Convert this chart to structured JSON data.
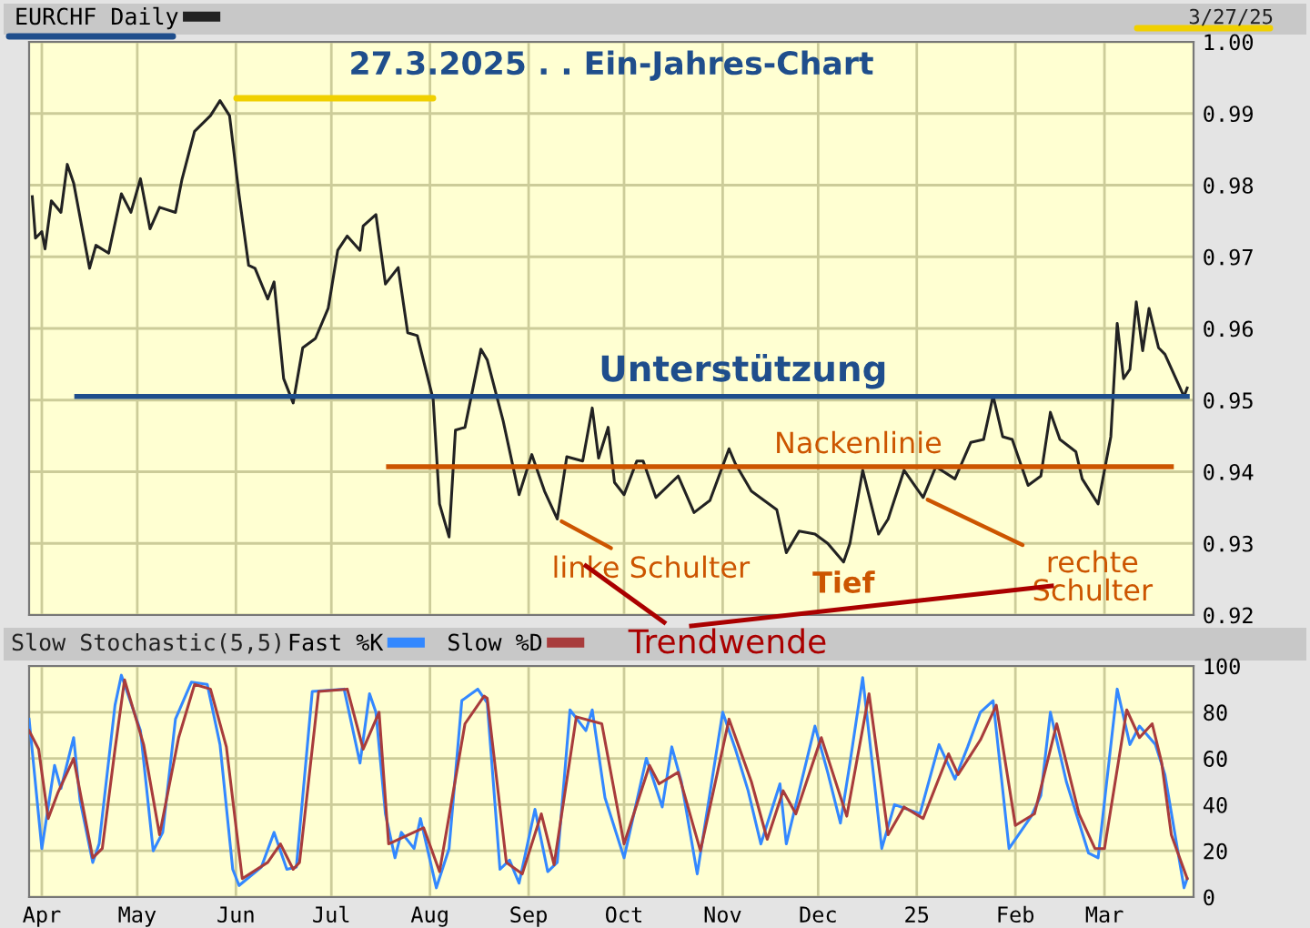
{
  "chart_data": [
    {
      "type": "line",
      "title": "27.3.2025 . . Ein-Jahres-Chart",
      "legend": "top left",
      "grid": true,
      "tick_labels": "y",
      "xlim": [
        "2024-03-28",
        "2025-03-29"
      ],
      "xticks": [
        {
          "value": "2024-04-01",
          "label": null
        },
        {
          "value": "2024-05-01",
          "label": null
        },
        {
          "value": "2024-06-01",
          "label": null
        },
        {
          "value": "2024-07-01",
          "label": null
        },
        {
          "value": "2024-08-01",
          "label": null
        },
        {
          "value": "2024-09-01",
          "label": null
        },
        {
          "value": "2024-10-01",
          "label": null
        },
        {
          "value": "2024-11-01",
          "label": null
        },
        {
          "value": "2024-12-01",
          "label": null
        },
        {
          "value": "2025-01-01",
          "label": null
        },
        {
          "value": "2025-02-01",
          "label": null
        },
        {
          "value": "2025-03-01",
          "label": null
        }
      ],
      "ylim": [
        0.92,
        1.0
      ],
      "yticks": [
        0.92,
        0.93,
        0.94,
        0.95,
        0.96,
        0.97,
        0.98,
        0.99,
        {
          "value": 1.0,
          "label": "1.00"
        }
      ],
      "x": [
        "2024-03-29",
        "2024-03-30",
        "2024-04-01",
        "2024-04-02",
        "2024-04-04",
        "2024-04-07",
        "2024-04-09",
        "2024-04-11",
        "2024-04-16",
        "2024-04-18",
        "2024-04-22",
        "2024-04-26",
        "2024-04-29",
        "2024-05-02",
        "2024-05-05",
        "2024-05-08",
        "2024-05-13",
        "2024-05-15",
        "2024-05-19",
        "2024-05-24",
        "2024-05-27",
        "2024-05-30",
        "2024-06-02",
        "2024-06-05",
        "2024-06-07",
        "2024-06-11",
        "2024-06-13",
        "2024-06-16",
        "2024-06-19",
        "2024-06-22",
        "2024-06-26",
        "2024-06-30",
        "2024-07-03",
        "2024-07-06",
        "2024-07-10",
        "2024-07-11",
        "2024-07-15",
        "2024-07-18",
        "2024-07-22",
        "2024-07-25",
        "2024-07-28",
        "2024-08-02",
        "2024-08-04",
        "2024-08-07",
        "2024-08-09",
        "2024-08-12",
        "2024-08-17",
        "2024-08-19",
        "2024-08-24",
        "2024-08-29",
        "2024-09-02",
        "2024-09-06",
        "2024-09-10",
        "2024-09-13",
        "2024-09-18",
        "2024-09-21",
        "2024-09-23",
        "2024-09-26",
        "2024-09-28",
        "2024-10-01",
        "2024-10-05",
        "2024-10-07",
        "2024-10-11",
        "2024-10-18",
        "2024-10-23",
        "2024-10-28",
        "2024-11-03",
        "2024-11-05",
        "2024-11-10",
        "2024-11-18",
        "2024-11-21",
        "2024-11-25",
        "2024-11-30",
        "2024-12-04",
        "2024-12-09",
        "2024-12-11",
        "2024-12-15",
        "2024-12-20",
        "2024-12-23",
        "2024-12-28",
        "2025-01-03",
        "2025-01-07",
        "2025-01-13",
        "2025-01-18",
        "2025-01-22",
        "2025-01-25",
        "2025-01-28",
        "2025-01-31",
        "2025-02-05",
        "2025-02-09",
        "2025-02-12",
        "2025-02-15",
        "2025-02-20",
        "2025-02-22",
        "2025-02-27",
        "2025-03-03",
        "2025-03-05",
        "2025-03-07",
        "2025-03-09",
        "2025-03-11",
        "2025-03-13",
        "2025-03-15",
        "2025-03-18",
        "2025-03-20",
        "2025-03-26",
        "2025-03-27"
      ],
      "series": [
        {
          "name": "EURCHF Daily",
          "color": "#222222",
          "values": [
            0.9784,
            0.9726,
            0.9735,
            0.9711,
            0.9778,
            0.9762,
            0.9829,
            0.9803,
            0.9684,
            0.9716,
            0.9705,
            0.9788,
            0.9762,
            0.9809,
            0.9739,
            0.9769,
            0.9762,
            0.9807,
            0.9875,
            0.9897,
            0.9918,
            0.9897,
            0.9786,
            0.9688,
            0.9684,
            0.9641,
            0.9665,
            0.953,
            0.9496,
            0.9573,
            0.9586,
            0.9628,
            0.9709,
            0.9729,
            0.9709,
            0.9743,
            0.9759,
            0.9662,
            0.9685,
            0.9594,
            0.959,
            0.9501,
            0.9355,
            0.9309,
            0.9458,
            0.9462,
            0.9571,
            0.9556,
            0.9471,
            0.9368,
            0.9424,
            0.9373,
            0.9334,
            0.9421,
            0.9415,
            0.9489,
            0.9419,
            0.9462,
            0.9385,
            0.9368,
            0.9415,
            0.9415,
            0.9364,
            0.9394,
            0.9343,
            0.936,
            0.9432,
            0.9411,
            0.9373,
            0.9347,
            0.9287,
            0.9317,
            0.9313,
            0.93,
            0.9274,
            0.93,
            0.9402,
            0.9313,
            0.9334,
            0.9402,
            0.9364,
            0.9407,
            0.939,
            0.9441,
            0.9445,
            0.9506,
            0.9449,
            0.9445,
            0.9381,
            0.9394,
            0.9483,
            0.9445,
            0.9428,
            0.939,
            0.9355,
            0.9449,
            0.9607,
            0.953,
            0.9543,
            0.9637,
            0.9569,
            0.9628,
            0.9573,
            0.9564,
            0.9505,
            0.9517
          ]
        },
        {
          "name": "Unterstützung",
          "type": "line",
          "color": "#1f4e8c",
          "x": [
            "2024-04-12",
            "2025-03-27"
          ],
          "values": [
            0.9505,
            0.9505
          ]
        },
        {
          "name": "Nackenlinie",
          "type": "line",
          "color": "#cc5500",
          "x": [
            "2024-07-19",
            "2025-03-22"
          ],
          "values": [
            0.9407,
            0.9407
          ]
        }
      ],
      "annotations": [
        "3/27/25",
        {
          "text": "linke Schulter",
          "x": "2024-09-10",
          "y": 0.9334
        },
        {
          "text": "Tief",
          "x": "2024-12-09",
          "y": 0.9274
        },
        {
          "text": "rechte\nSchulter",
          "x": "2025-01-03",
          "y": 0.9364
        }
      ]
    },
    {
      "type": "line",
      "title": "Slow Stochastic(5,5)",
      "legend": "top left",
      "grid": true,
      "xlim": [
        "2024-03-28",
        "2025-03-29"
      ],
      "xticks": [
        {
          "value": "2024-04-01",
          "label": "Apr"
        },
        {
          "value": "2024-05-01",
          "label": "May"
        },
        {
          "value": "2024-06-01",
          "label": "Jun"
        },
        {
          "value": "2024-07-01",
          "label": "Jul"
        },
        {
          "value": "2024-08-01",
          "label": "Aug"
        },
        {
          "value": "2024-09-01",
          "label": "Sep"
        },
        {
          "value": "2024-10-01",
          "label": "Oct"
        },
        {
          "value": "2024-11-01",
          "label": "Nov"
        },
        {
          "value": "2024-12-01",
          "label": "Dec"
        },
        {
          "value": "2025-01-01",
          "label": "25"
        },
        {
          "value": "2025-02-01",
          "label": "Feb"
        },
        {
          "value": "2025-03-01",
          "label": "Mar"
        }
      ],
      "ylim": [
        0,
        100
      ],
      "yticks": [
        0,
        20,
        40,
        60,
        80,
        100
      ],
      "series": [
        {
          "name": "Fast %K",
          "color": "#3388ff",
          "x": [
            "2024-03-28",
            "2024-04-01",
            "2024-04-05",
            "2024-04-07",
            "2024-04-11",
            "2024-04-13",
            "2024-04-17",
            "2024-04-19",
            "2024-04-24",
            "2024-04-26",
            "2024-05-02",
            "2024-05-06",
            "2024-05-09",
            "2024-05-13",
            "2024-05-18",
            "2024-05-23",
            "2024-05-27",
            "2024-05-31",
            "2024-06-02",
            "2024-06-09",
            "2024-06-13",
            "2024-06-17",
            "2024-06-20",
            "2024-06-25",
            "2024-07-05",
            "2024-07-10",
            "2024-07-13",
            "2024-07-15",
            "2024-07-18",
            "2024-07-21",
            "2024-07-23",
            "2024-07-27",
            "2024-07-29",
            "2024-08-03",
            "2024-08-07",
            "2024-08-11",
            "2024-08-16",
            "2024-08-19",
            "2024-08-23",
            "2024-08-26",
            "2024-08-29",
            "2024-09-03",
            "2024-09-07",
            "2024-09-10",
            "2024-09-14",
            "2024-09-19",
            "2024-09-21",
            "2024-09-25",
            "2024-10-01",
            "2024-10-08",
            "2024-10-13",
            "2024-10-16",
            "2024-10-19",
            "2024-10-24",
            "2024-11-01",
            "2024-11-05",
            "2024-11-09",
            "2024-11-13",
            "2024-11-19",
            "2024-11-21",
            "2024-11-30",
            "2024-12-04",
            "2024-12-08",
            "2024-12-11",
            "2024-12-15",
            "2024-12-21",
            "2024-12-25",
            "2025-01-02",
            "2025-01-08",
            "2025-01-13",
            "2025-01-17",
            "2025-01-21",
            "2025-01-25",
            "2025-01-30",
            "2025-02-06",
            "2025-02-09",
            "2025-02-12",
            "2025-02-17",
            "2025-02-24",
            "2025-02-27",
            "2025-03-05",
            "2025-03-09",
            "2025-03-12",
            "2025-03-17",
            "2025-03-20",
            "2025-03-26",
            "2025-03-27"
          ],
          "values": [
            77,
            21,
            57,
            47,
            69,
            42,
            15,
            23,
            83,
            96,
            72,
            20,
            28,
            77,
            93,
            92,
            66,
            12,
            5,
            13,
            28,
            12,
            13,
            89,
            90,
            58,
            88,
            80,
            36,
            17,
            28,
            21,
            34,
            4,
            21,
            85,
            90,
            84,
            12,
            16,
            6,
            38,
            11,
            15,
            81,
            72,
            81,
            43,
            17,
            60,
            39,
            65,
            50,
            10,
            80,
            64,
            46,
            23,
            49,
            23,
            74,
            54,
            32,
            58,
            95,
            21,
            40,
            36,
            66,
            51,
            65,
            80,
            85,
            21,
            35,
            44,
            80,
            50,
            19,
            17,
            90,
            66,
            74,
            66,
            53,
            4,
            8
          ]
        },
        {
          "name": "Slow %D",
          "color": "#a83c3c",
          "x": [
            "2024-03-28",
            "2024-03-31",
            "2024-04-03",
            "2024-04-06",
            "2024-04-11",
            "2024-04-17",
            "2024-04-20",
            "2024-04-24",
            "2024-04-27",
            "2024-05-03",
            "2024-05-08",
            "2024-05-14",
            "2024-05-19",
            "2024-05-24",
            "2024-05-29",
            "2024-06-03",
            "2024-06-11",
            "2024-06-15",
            "2024-06-19",
            "2024-06-21",
            "2024-06-27",
            "2024-07-06",
            "2024-07-11",
            "2024-07-16",
            "2024-07-19",
            "2024-07-30",
            "2024-08-04",
            "2024-08-12",
            "2024-08-18",
            "2024-08-19",
            "2024-08-25",
            "2024-08-30",
            "2024-09-05",
            "2024-09-09",
            "2024-09-16",
            "2024-09-24",
            "2024-10-01",
            "2024-10-09",
            "2024-10-12",
            "2024-10-18",
            "2024-10-25",
            "2024-11-03",
            "2024-11-10",
            "2024-11-15",
            "2024-11-20",
            "2024-11-24",
            "2024-12-02",
            "2024-12-10",
            "2024-12-17",
            "2024-12-23",
            "2024-12-28",
            "2025-01-03",
            "2025-01-11",
            "2025-01-14",
            "2025-01-21",
            "2025-01-26",
            "2025-02-01",
            "2025-02-07",
            "2025-02-14",
            "2025-02-21",
            "2025-02-26",
            "2025-03-01",
            "2025-03-08",
            "2025-03-12",
            "2025-03-16",
            "2025-03-19",
            "2025-03-22",
            "2025-03-27"
          ],
          "values": [
            72,
            64,
            34,
            45,
            60,
            17,
            21,
            64,
            94,
            66,
            27,
            69,
            92,
            90,
            65,
            8,
            15,
            23,
            12,
            15,
            89,
            90,
            64,
            80,
            23,
            30,
            11,
            75,
            87,
            86,
            15,
            10,
            36,
            14,
            78,
            75,
            23,
            57,
            49,
            54,
            20,
            77,
            50,
            25,
            46,
            36,
            69,
            35,
            88,
            27,
            39,
            34,
            62,
            53,
            68,
            83,
            31,
            36,
            75,
            36,
            21,
            21,
            81,
            69,
            75,
            58,
            27,
            8
          ]
        }
      ],
      "annotations": [
        "Trendwende"
      ]
    }
  ]
}
